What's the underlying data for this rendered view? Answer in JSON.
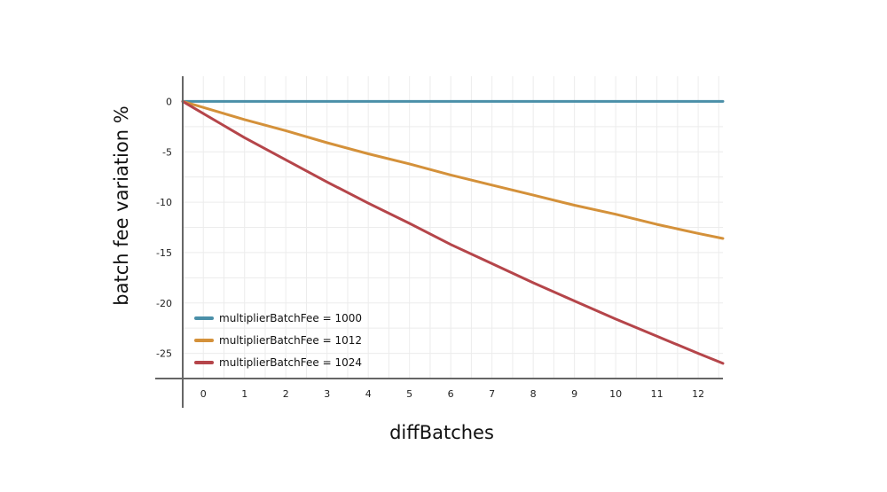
{
  "chart_data": {
    "type": "line",
    "title": "",
    "xlabel": "diffBatches",
    "ylabel": "batch fee variation %",
    "xlim": [
      -0.5,
      12.6
    ],
    "ylim": [
      -27.5,
      2.5
    ],
    "x_ticks": [
      0,
      1,
      2,
      3,
      4,
      5,
      6,
      7,
      8,
      9,
      10,
      11,
      12
    ],
    "y_ticks": [
      0,
      -5,
      -10,
      -15,
      -20,
      -25
    ],
    "grid": true,
    "legend_position": "bottom-left",
    "x": [
      -0.5,
      0,
      1,
      2,
      3,
      4,
      5,
      6,
      7,
      8,
      9,
      10,
      11,
      12,
      12.6
    ],
    "series": [
      {
        "name": "multiplierBatchFee = 1000",
        "color": "#4a8fa8",
        "values": [
          0,
          0,
          0,
          0,
          0,
          0,
          0,
          0,
          0,
          0,
          0,
          0,
          0,
          0,
          0
        ]
      },
      {
        "name": "multiplierBatchFee = 1012",
        "color": "#d4913a",
        "values": [
          0,
          -0.6,
          -1.8,
          -2.9,
          -4.1,
          -5.2,
          -6.2,
          -7.3,
          -8.3,
          -9.3,
          -10.3,
          -11.2,
          -12.2,
          -13.1,
          -13.6
        ]
      },
      {
        "name": "multiplierBatchFee = 1024",
        "color": "#b5454a",
        "values": [
          0,
          -1.2,
          -3.6,
          -5.8,
          -8.0,
          -10.1,
          -12.1,
          -14.2,
          -16.1,
          -18.0,
          -19.8,
          -21.6,
          -23.3,
          -25.0,
          -26.0
        ]
      }
    ]
  }
}
